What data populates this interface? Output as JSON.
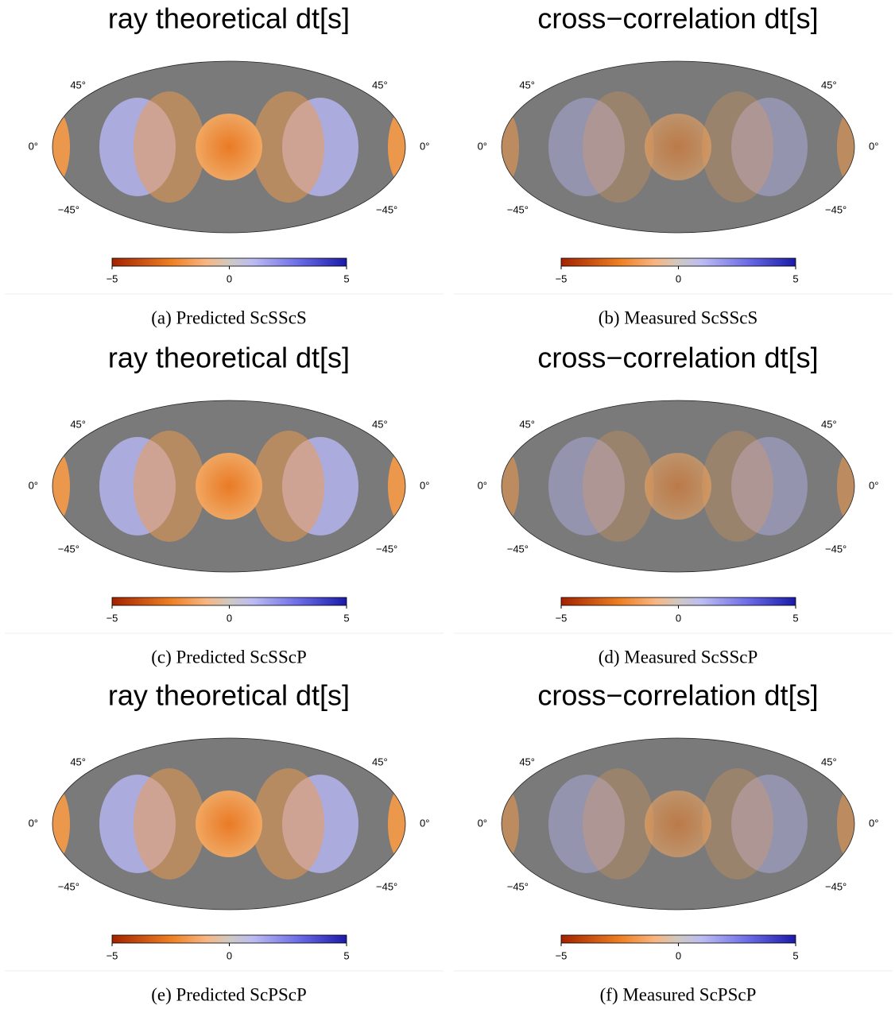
{
  "panels": [
    {
      "title": "ray theoretical dt[s]",
      "caption": "(a) Predicted ScSScS",
      "lat_labels": [
        "45°",
        "45°",
        "0°",
        "0°",
        "−45°",
        "−45°"
      ],
      "colorbar": {
        "ticks": [
          {
            "value": -5,
            "label": "−5"
          },
          0,
          5
        ]
      }
    },
    {
      "title": "cross−correlation dt[s]",
      "caption": "(b) Measured ScSScS",
      "lat_labels": [
        "45°",
        "45°",
        "0°",
        "0°",
        "−45°",
        "−45°"
      ],
      "colorbar": {
        "ticks": [
          {
            "value": -5,
            "label": "−5"
          },
          0,
          5
        ]
      }
    },
    {
      "title": "ray theoretical dt[s]",
      "caption": "(c) Predicted ScSScP",
      "lat_labels": [
        "45°",
        "45°",
        "0°",
        "0°",
        "−45°",
        "−45°"
      ],
      "colorbar": {
        "ticks": [
          {
            "value": -5,
            "label": "−5"
          },
          0,
          5
        ]
      }
    },
    {
      "title": "cross−correlation dt[s]",
      "caption": "(d) Measured ScSScP",
      "lat_labels": [
        "45°",
        "45°",
        "0°",
        "0°",
        "−45°",
        "−45°"
      ],
      "colorbar": {
        "ticks": [
          {
            "value": -5,
            "label": "−5"
          },
          0,
          5
        ]
      }
    },
    {
      "title": "ray theoretical dt[s]",
      "caption": "(e) Predicted ScPScP",
      "lat_labels": [
        "45°",
        "45°",
        "0°",
        "0°",
        "−45°",
        "−45°"
      ],
      "colorbar": {
        "ticks": [
          {
            "value": -5,
            "label": "−5"
          },
          0,
          5
        ]
      }
    },
    {
      "title": "cross−correlation dt[s]",
      "caption": "(f) Measured ScPScP",
      "lat_labels": [
        "45°",
        "45°",
        "0°",
        "0°",
        "−45°",
        "−45°"
      ],
      "colorbar": {
        "ticks": [
          {
            "value": -5,
            "label": "−5"
          },
          0,
          5
        ]
      }
    }
  ]
}
